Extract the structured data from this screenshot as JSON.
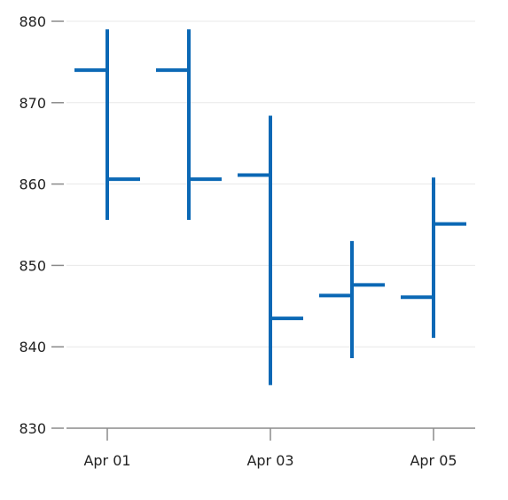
{
  "chart_data": {
    "type": "ohlc",
    "title": "",
    "xlabel": "",
    "ylabel": "",
    "ylim": [
      830,
      880
    ],
    "y_ticks": [
      830,
      840,
      850,
      860,
      870,
      880
    ],
    "x_ticks": [
      "Apr 01",
      "Apr 03",
      "Apr 05"
    ],
    "grid": "horizontal",
    "color": "#0b68b5",
    "series": [
      {
        "dates": [
          "Apr 01",
          "Apr 02",
          "Apr 03",
          "Apr 04",
          "Apr 05"
        ],
        "open": [
          874.0,
          874.0,
          861.1,
          846.3,
          846.1
        ],
        "high": [
          879.0,
          879.0,
          868.4,
          853.0,
          860.8
        ],
        "low": [
          855.6,
          855.6,
          835.3,
          838.6,
          841.1
        ],
        "close": [
          860.6,
          860.6,
          843.5,
          847.6,
          855.1
        ]
      }
    ]
  }
}
